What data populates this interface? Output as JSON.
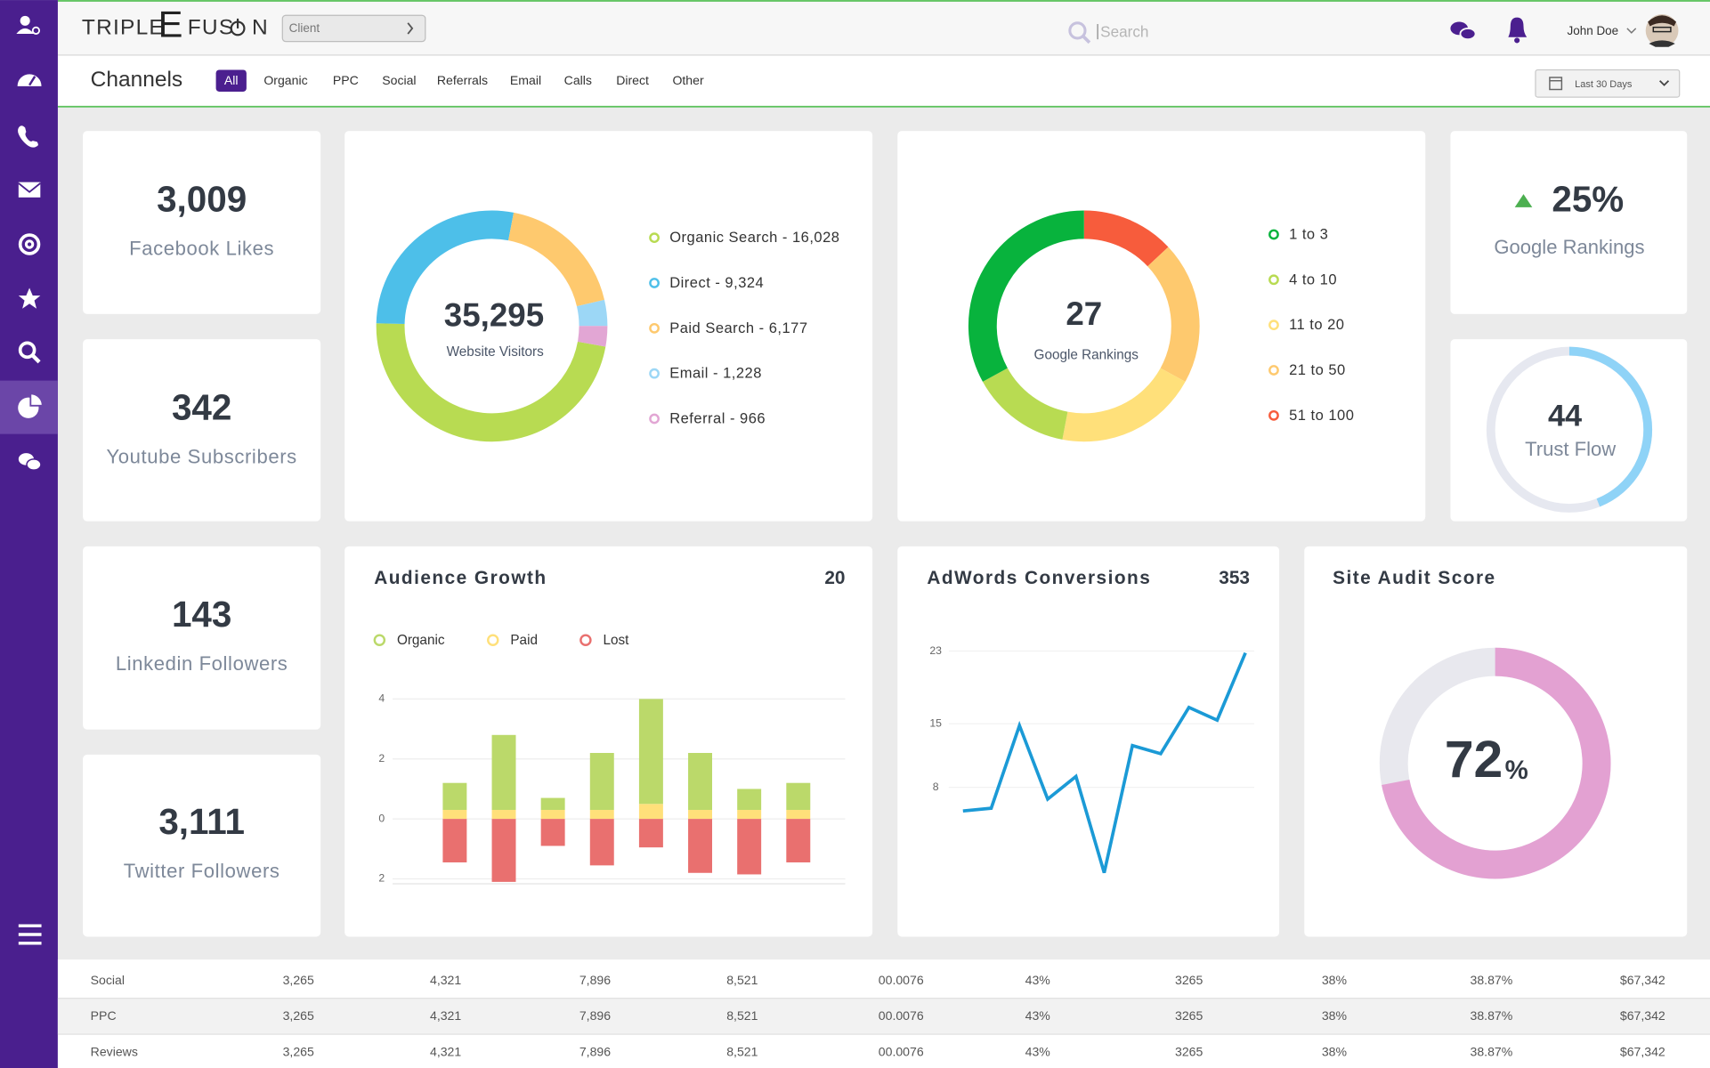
{
  "header": {
    "logo": [
      "TRIPLE",
      "E",
      "FUS",
      "N"
    ],
    "client": "Client",
    "search": "Search",
    "user": "John Doe"
  },
  "nav": {
    "title": "Channels",
    "tabs": [
      "All",
      "Organic",
      "PPC",
      "Social",
      "Referrals",
      "Email",
      "Calls",
      "Direct",
      "Other"
    ],
    "active": 0,
    "date_range": "Last 30 Days"
  },
  "stats": [
    {
      "value": "3,009",
      "label": "Facebook Likes"
    },
    {
      "value": "342",
      "label": "Youtube Subscribers"
    },
    {
      "value": "143",
      "label": "Linkedin Followers"
    },
    {
      "value": "3,111",
      "label": "Twitter Followers"
    }
  ],
  "website_visitors": {
    "type": "pie",
    "total": "35,295",
    "label": "Website Visitors",
    "segments": [
      {
        "label": "Organic Search - 16,028",
        "value": 16028,
        "color": "#b8db52"
      },
      {
        "label": "Direct - 9,324",
        "value": 9324,
        "color": "#4dbfe9"
      },
      {
        "label": "Paid Search - 6,177",
        "value": 6177,
        "color": "#fec96e"
      },
      {
        "label": "Email - 1,228",
        "value": 1228,
        "color": "#9cd7f6"
      },
      {
        "label": "Referral - 966",
        "value": 966,
        "color": "#e2a6d4"
      }
    ]
  },
  "google_rankings": {
    "type": "pie",
    "value": "27",
    "label": "Google Rankings",
    "segments": [
      {
        "label": "1 to 3",
        "value": 33,
        "color": "#08b33d"
      },
      {
        "label": "4 to 10",
        "value": 14,
        "color": "#b8db52"
      },
      {
        "label": "11 to 20",
        "value": 20,
        "color": "#ffe07a"
      },
      {
        "label": "21 to 50",
        "value": 20,
        "color": "#fec96e"
      },
      {
        "label": "51 to 100",
        "value": 13,
        "color": "#f75c3c"
      }
    ]
  },
  "rankings_change": {
    "value": "25%",
    "label": "Google Rankings"
  },
  "trust_flow": {
    "value": 44,
    "label": "Trust Flow",
    "color": "#8fd3f7"
  },
  "audience_growth": {
    "type": "bar",
    "title": "Audience Growth",
    "total": "20",
    "series": [
      {
        "name": "Organic",
        "color": "#bbd96a",
        "values": [
          0.9,
          2.5,
          0.4,
          1.9,
          3.5,
          1.9,
          0.7,
          0.9
        ]
      },
      {
        "name": "Paid",
        "color": "#ffe07a",
        "values": [
          0.3,
          0.3,
          0.3,
          0.3,
          0.5,
          0.3,
          0.3,
          0.3
        ]
      },
      {
        "name": "Lost",
        "color": "#e9706f",
        "values": [
          -1.45,
          -2.1,
          -0.9,
          -1.55,
          -0.95,
          -1.8,
          -1.85,
          -1.45
        ]
      }
    ],
    "ylim": [
      -2.2,
      4.1
    ],
    "yticks": [
      4,
      2,
      0,
      {
        "value": -2,
        "label": "2"
      }
    ]
  },
  "adwords": {
    "type": "line",
    "title": "AdWords Conversions",
    "total": "353",
    "color": "#1b9ad6",
    "values": [
      5.4,
      5.7,
      14.8,
      6.7,
      9.2,
      -1.4,
      12.6,
      11.7,
      16.8,
      15.4,
      22.8
    ],
    "ylim": [
      -3,
      25
    ],
    "yticks": [
      23,
      15,
      8
    ]
  },
  "site_audit": {
    "title": "Site Audit Score",
    "value": 72,
    "unit": "%",
    "color": "#e3a1d2"
  },
  "table": {
    "rows": [
      [
        "Social",
        "3,265",
        "4,321",
        "7,896",
        "8,521",
        "00.0076",
        "43%",
        "3265",
        "38%",
        "38.87%",
        "$67,342"
      ],
      [
        "PPC",
        "3,265",
        "4,321",
        "7,896",
        "8,521",
        "00.0076",
        "43%",
        "3265",
        "38%",
        "38.87%",
        "$67,342"
      ],
      [
        "Reviews",
        "3,265",
        "4,321",
        "7,896",
        "8,521",
        "00.0076",
        "43%",
        "3265",
        "38%",
        "38.87%",
        "$67,342"
      ]
    ]
  }
}
